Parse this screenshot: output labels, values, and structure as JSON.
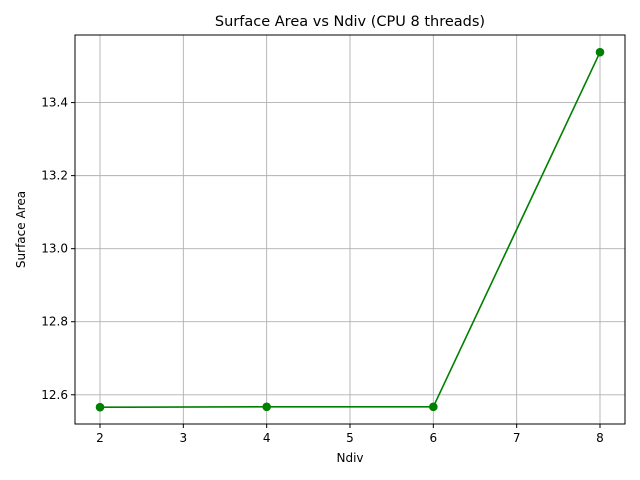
{
  "chart_data": {
    "type": "line",
    "title": "Surface Area vs Ndiv (CPU 8 threads)",
    "xlabel": "Ndiv",
    "ylabel": "Surface Area",
    "xlim": [
      1.7,
      8.3
    ],
    "ylim": [
      12.52,
      13.585
    ],
    "xticks": [
      2,
      3,
      4,
      5,
      6,
      7,
      8
    ],
    "xtick_labels": [
      "2",
      "3",
      "4",
      "5",
      "6",
      "7",
      "8"
    ],
    "yticks": [
      12.6,
      12.8,
      13.0,
      13.2,
      13.4
    ],
    "ytick_labels": [
      "12.6",
      "12.8",
      "13.0",
      "13.2",
      "13.4"
    ],
    "grid": true,
    "legend": false,
    "series": [
      {
        "color": "#008000",
        "marker": "circle",
        "x": [
          2,
          4,
          6,
          8
        ],
        "y": [
          12.566,
          12.567,
          12.567,
          13.538
        ]
      }
    ]
  }
}
